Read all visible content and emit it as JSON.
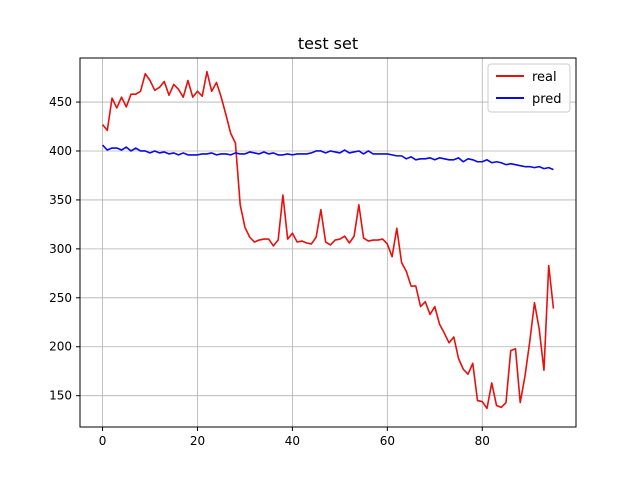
{
  "chart_data": {
    "type": "line",
    "title": "test set",
    "xlabel": "",
    "ylabel": "",
    "xlim": [
      -4.75,
      99.75
    ],
    "ylim": [
      118,
      495
    ],
    "xticks": [
      0,
      20,
      40,
      60,
      80
    ],
    "yticks": [
      150,
      200,
      250,
      300,
      350,
      400,
      450
    ],
    "grid": true,
    "legend_position": "top-right",
    "series": [
      {
        "name": "real",
        "color": "#e8100d",
        "values": [
          427,
          421,
          454,
          444,
          455,
          445,
          458,
          458,
          461,
          479,
          472,
          462,
          465,
          471,
          457,
          468,
          463,
          455,
          472,
          455,
          461,
          456,
          481,
          461,
          470,
          455,
          437,
          418,
          408,
          345,
          322,
          312,
          307,
          309,
          310,
          310,
          303,
          309,
          355,
          310,
          316,
          307,
          308,
          306,
          305,
          312,
          340,
          307,
          304,
          309,
          310,
          313,
          306,
          313,
          345,
          311,
          308,
          309,
          309,
          310,
          305,
          292,
          321,
          286,
          277,
          262,
          262,
          241,
          246,
          233,
          241,
          223,
          214,
          204,
          210,
          188,
          177,
          172,
          183,
          145,
          144,
          137,
          163,
          140,
          138,
          143,
          196,
          198,
          143,
          170,
          205,
          245,
          218,
          176,
          283,
          239
        ]
      },
      {
        "name": "pred",
        "color": "#0a0ae8",
        "values": [
          406,
          401,
          403,
          403,
          401,
          404,
          400,
          403,
          400,
          400,
          398,
          400,
          398,
          399,
          397,
          398,
          396,
          398,
          396,
          396,
          396,
          397,
          397,
          398,
          396,
          397,
          397,
          396,
          398,
          397,
          397,
          399,
          398,
          397,
          399,
          397,
          398,
          396,
          396,
          397,
          396,
          397,
          397,
          397,
          398,
          400,
          400,
          398,
          400,
          399,
          398,
          401,
          398,
          399,
          400,
          397,
          400,
          397,
          397,
          397,
          397,
          396,
          395,
          395,
          392,
          394,
          391,
          392,
          392,
          393,
          391,
          393,
          392,
          391,
          391,
          393,
          389,
          392,
          391,
          389,
          389,
          391,
          388,
          389,
          388,
          386,
          387,
          386,
          385,
          384,
          384,
          383,
          384,
          382,
          383,
          381
        ]
      }
    ]
  }
}
